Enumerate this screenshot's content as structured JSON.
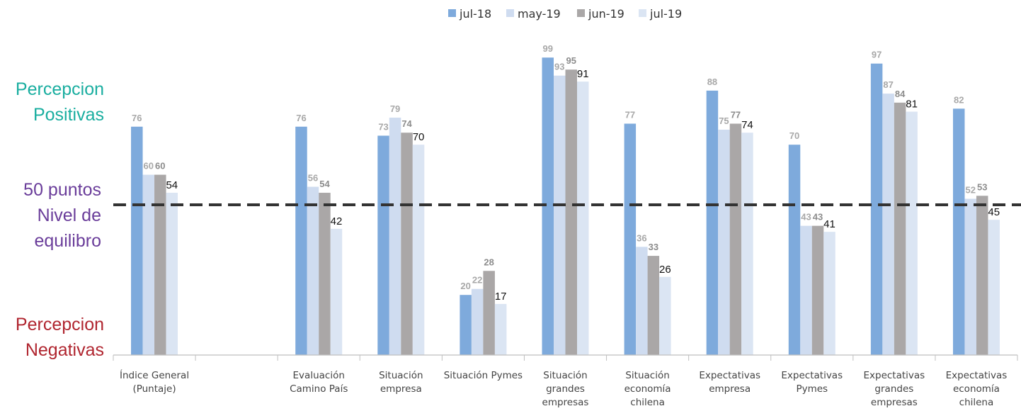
{
  "side_labels": {
    "positive": {
      "line1": "Percepcion",
      "line2": "Positivas",
      "color": "#1aaea0"
    },
    "equilibrium": {
      "line1": "50 puntos",
      "line2": "Nivel de",
      "line3": "equilibro",
      "color": "#6a3d9a"
    },
    "negative": {
      "line1": "Percepcion",
      "line2": "Negativas",
      "color": "#b0252f"
    }
  },
  "chart_data": {
    "type": "bar",
    "title": "",
    "xlabel": "",
    "ylabel": "",
    "ylim": [
      0,
      100
    ],
    "grid": false,
    "legend_position": "top-center",
    "reference_line": {
      "value": 50,
      "style": "dashed",
      "color": "#333333"
    },
    "categories": [
      [
        "Índice General",
        "(Puntaje)"
      ],
      [
        ""
      ],
      [
        "Evaluación",
        "Camino País"
      ],
      [
        "Situación",
        "empresa"
      ],
      [
        "Situación Pymes"
      ],
      [
        "Situación",
        "grandes",
        "empresas"
      ],
      [
        "Situación",
        "economía",
        "chilena"
      ],
      [
        "Expectativas",
        "empresa"
      ],
      [
        "Expectativas",
        "Pymes"
      ],
      [
        "Expectativas",
        "grandes",
        "empresas"
      ],
      [
        "Expectativas",
        "economía",
        "chilena"
      ]
    ],
    "series": [
      {
        "name": "jul-18",
        "color": "#7eaadc",
        "values": [
          76,
          null,
          76,
          73,
          20,
          99,
          77,
          88,
          70,
          97,
          82
        ]
      },
      {
        "name": "may-19",
        "color": "#cfdcf0",
        "values": [
          60,
          null,
          56,
          79,
          22,
          93,
          36,
          75,
          43,
          87,
          52
        ]
      },
      {
        "name": "jun-19",
        "color": "#aaa7a7",
        "values": [
          60,
          null,
          54,
          74,
          28,
          95,
          33,
          77,
          43,
          84,
          53
        ]
      },
      {
        "name": "jul-19",
        "color": "#dbe5f3",
        "values": [
          54,
          null,
          42,
          70,
          17,
          91,
          26,
          74,
          41,
          81,
          45
        ]
      }
    ]
  }
}
